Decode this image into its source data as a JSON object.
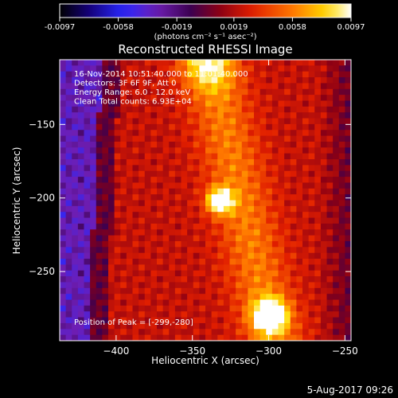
{
  "chart_data": {
    "type": "heatmap",
    "title": "Reconstructed RHESSI Image",
    "xlabel": "Heliocentric X (arcsec)",
    "ylabel": "Heliocentric Y (arcsec)",
    "xlim": [
      -437,
      -246
    ],
    "ylim": [
      -297,
      -106
    ],
    "x_ticks": [
      -400,
      -350,
      -300,
      -250
    ],
    "y_ticks": [
      -150,
      -200,
      -250
    ],
    "colorbar": {
      "min": -0.0097,
      "max": 0.0097,
      "ticks": [
        "-0.0097",
        "-0.0058",
        "-0.0019",
        "0.0019",
        "0.0058",
        "0.0097"
      ],
      "unit_label": "(photons cm⁻² s⁻¹ asec⁻²)"
    },
    "annotations": [
      "16-Nov-2014 10:51:40.000 to 11:01:40.000",
      "Detectors: 3F 6F 9F, Att 0",
      "Energy Range: 6.0 - 12.0 keV",
      "Clean     Total counts: 6.93E+04"
    ],
    "peak_label": "Position of Peak = [-299,-280]",
    "peak": {
      "x": -299,
      "y": -280
    },
    "sources": [
      {
        "x": -332,
        "y": -202,
        "radius": 6,
        "value": 0.0097
      },
      {
        "x": -299,
        "y": -280,
        "radius": 8,
        "value": 0.0097
      }
    ],
    "grid": false,
    "colormap": "RHESSI (black-blue-purple-red-orange-yellow-white)"
  },
  "footer_date": "5-Aug-2017 09:26"
}
